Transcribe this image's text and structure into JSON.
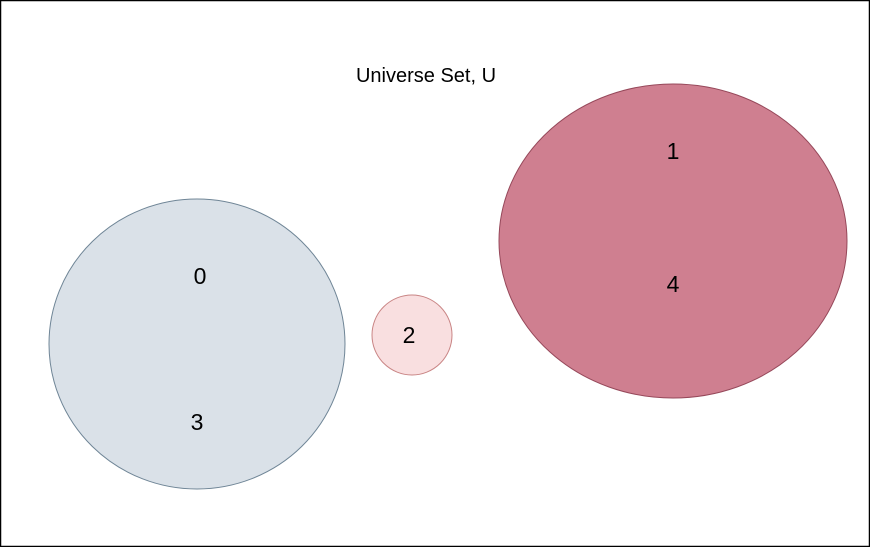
{
  "universe": {
    "title": "Universe Set, U",
    "border_color": "#000000",
    "background": "#ffffff"
  },
  "sets": [
    {
      "fill": "#dae1e8",
      "stroke": "#6f8596",
      "elements": [
        "0",
        "3"
      ]
    },
    {
      "fill": "#f9dfe0",
      "stroke": "#c98585",
      "elements": [
        "2"
      ]
    },
    {
      "fill": "#cf7f90",
      "stroke": "#96485a",
      "elements": [
        "1",
        "4"
      ]
    }
  ]
}
